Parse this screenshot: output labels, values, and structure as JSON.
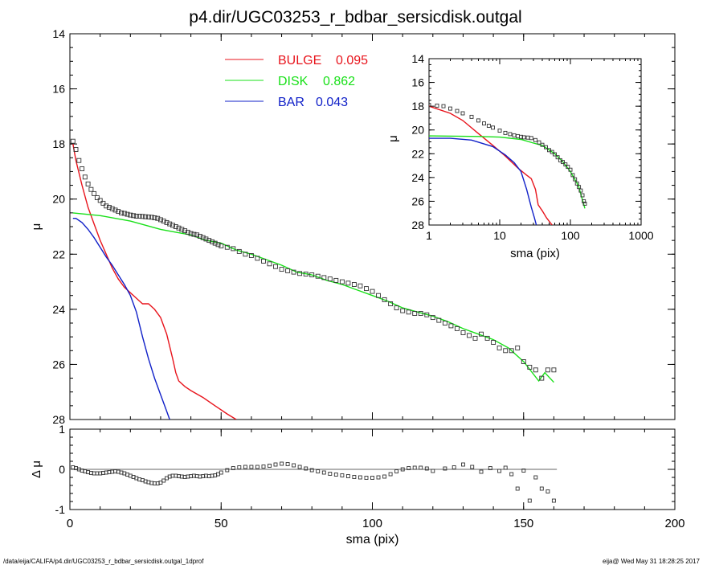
{
  "title": "p4.dir/UGC03253_r_bdbar_sersicdisk.outgal",
  "footer": {
    "left": "/data/eija/CALIFA/p4.dir/UGC03253_r_bdbar_sersicdisk.outgal_1dprof",
    "right": "eija@  Wed May 31 18:28:25 2017"
  },
  "colors": {
    "bulge": "#e8141c",
    "disk": "#18e018",
    "bar": "#1020c8",
    "data": "#000000"
  },
  "chart_data": [
    {
      "id": "main",
      "type": "line",
      "xlabel": "",
      "ylabel": "μ",
      "xlim": [
        0,
        200
      ],
      "ylim": [
        28,
        14
      ],
      "y_inverted": true,
      "y_ticks": [
        14,
        16,
        18,
        20,
        22,
        24,
        26,
        28
      ],
      "legend": [
        {
          "name": "BULGE",
          "value": "0.095",
          "color": "#e8141c"
        },
        {
          "name": "DISK",
          "value": "0.862",
          "color": "#18e018"
        },
        {
          "name": "BAR",
          "value": "0.043",
          "color": "#1020c8"
        }
      ],
      "legend_placement": "top-center",
      "series": [
        {
          "name": "BULGE",
          "kind": "line",
          "color": "#e8141c",
          "x": [
            1,
            2,
            4,
            6,
            8,
            10,
            12,
            14,
            16,
            18,
            20,
            22,
            24,
            26,
            28,
            30,
            32,
            34,
            35,
            36,
            38,
            40,
            44,
            48,
            52,
            55
          ],
          "y": [
            18.0,
            18.6,
            19.5,
            20.3,
            20.9,
            21.5,
            22.0,
            22.5,
            22.9,
            23.2,
            23.4,
            23.6,
            23.8,
            23.8,
            24.0,
            24.3,
            24.9,
            25.8,
            26.3,
            26.6,
            26.8,
            26.95,
            27.2,
            27.5,
            27.8,
            28.0
          ]
        },
        {
          "name": "DISK",
          "kind": "line",
          "color": "#18e018",
          "x": [
            1,
            10,
            20,
            30,
            35,
            40,
            45,
            50,
            55,
            60,
            65,
            70,
            75,
            80,
            85,
            90,
            95,
            100,
            105,
            110,
            115,
            120,
            125,
            130,
            135,
            140,
            145,
            150,
            155,
            157,
            160
          ],
          "y": [
            20.5,
            20.6,
            20.8,
            21.1,
            21.2,
            21.3,
            21.5,
            21.6,
            21.85,
            22.0,
            22.2,
            22.4,
            22.65,
            22.75,
            22.95,
            23.1,
            23.3,
            23.5,
            23.7,
            23.95,
            24.1,
            24.25,
            24.45,
            24.7,
            24.9,
            25.1,
            25.4,
            25.9,
            26.6,
            26.3,
            26.65
          ]
        },
        {
          "name": "BAR",
          "kind": "line",
          "color": "#1020c8",
          "x": [
            1,
            2,
            4,
            6,
            8,
            10,
            12,
            14,
            16,
            18,
            20,
            22,
            24,
            26,
            28,
            30,
            32,
            33
          ],
          "y": [
            20.7,
            20.7,
            20.85,
            21.1,
            21.4,
            21.75,
            22.1,
            22.4,
            22.75,
            23.1,
            23.5,
            24.1,
            25.0,
            25.8,
            26.5,
            27.1,
            27.7,
            28.0
          ]
        },
        {
          "name": "data",
          "kind": "points",
          "color": "#000000",
          "x": [
            1,
            2,
            3,
            4,
            5,
            6,
            7,
            8,
            9,
            10,
            11,
            12,
            13,
            14,
            15,
            16,
            17,
            18,
            19,
            20,
            21,
            22,
            23,
            24,
            25,
            26,
            27,
            28,
            29,
            30,
            31,
            32,
            33,
            34,
            35,
            36,
            37,
            38,
            39,
            40,
            41,
            42,
            43,
            44,
            45,
            46,
            47,
            48,
            49,
            50,
            52,
            54,
            56,
            58,
            60,
            62,
            64,
            66,
            68,
            70,
            72,
            74,
            76,
            78,
            80,
            82,
            84,
            86,
            88,
            90,
            92,
            94,
            96,
            98,
            100,
            102,
            104,
            106,
            108,
            110,
            112,
            114,
            116,
            118,
            120,
            122,
            124,
            126,
            128,
            130,
            132,
            134,
            136,
            138,
            140,
            142,
            144,
            146,
            148,
            150,
            152,
            154,
            156,
            158,
            160
          ],
          "y": [
            17.9,
            18.2,
            18.6,
            18.9,
            19.2,
            19.45,
            19.65,
            19.8,
            19.95,
            20.05,
            20.15,
            20.25,
            20.3,
            20.35,
            20.4,
            20.45,
            20.5,
            20.52,
            20.55,
            20.58,
            20.6,
            20.62,
            20.62,
            20.63,
            20.64,
            20.65,
            20.66,
            20.68,
            20.7,
            20.75,
            20.8,
            20.85,
            20.9,
            20.95,
            21.0,
            21.05,
            21.1,
            21.15,
            21.2,
            21.25,
            21.28,
            21.3,
            21.35,
            21.4,
            21.45,
            21.5,
            21.55,
            21.6,
            21.65,
            21.7,
            21.75,
            21.8,
            21.9,
            22.0,
            22.05,
            22.15,
            22.25,
            22.35,
            22.45,
            22.55,
            22.6,
            22.65,
            22.7,
            22.72,
            22.75,
            22.8,
            22.85,
            22.9,
            22.95,
            23.0,
            23.05,
            23.1,
            23.15,
            23.25,
            23.35,
            23.5,
            23.65,
            23.8,
            23.95,
            24.05,
            24.1,
            24.15,
            24.15,
            24.2,
            24.3,
            24.4,
            24.5,
            24.6,
            24.7,
            24.85,
            24.95,
            25.05,
            24.9,
            25.05,
            25.2,
            25.4,
            25.5,
            25.5,
            25.4,
            25.9,
            26.1,
            26.2,
            26.5,
            26.2,
            26.2
          ]
        }
      ]
    },
    {
      "id": "inset",
      "type": "line",
      "xlabel": "sma (pix)",
      "ylabel": "μ",
      "x_scale": "log",
      "xlim": [
        1,
        1000
      ],
      "ylim": [
        28,
        14
      ],
      "y_inverted": true,
      "x_ticks": [
        1,
        10,
        100,
        1000
      ],
      "x_tick_labels": [
        "1",
        "10",
        "100",
        "1000"
      ],
      "y_ticks": [
        14,
        16,
        18,
        20,
        22,
        24,
        26,
        28
      ],
      "series": [
        {
          "name": "BULGE",
          "kind": "line",
          "color": "#e8141c",
          "x": [
            1,
            2,
            3,
            5,
            8,
            12,
            18,
            24,
            28,
            32,
            35,
            40,
            46,
            55
          ],
          "y": [
            18.0,
            18.6,
            19.2,
            20.3,
            21.3,
            22.2,
            23.2,
            23.8,
            24.1,
            25.0,
            26.3,
            26.8,
            27.4,
            28.0
          ]
        },
        {
          "name": "DISK",
          "kind": "line",
          "color": "#18e018",
          "x": [
            1,
            5,
            10,
            20,
            30,
            40,
            60,
            80,
            100,
            130,
            160
          ],
          "y": [
            20.5,
            20.55,
            20.6,
            20.8,
            21.1,
            21.3,
            22.0,
            22.75,
            23.5,
            24.7,
            26.6
          ]
        },
        {
          "name": "BAR",
          "kind": "line",
          "color": "#1020c8",
          "x": [
            1,
            2,
            4,
            8,
            12,
            16,
            20,
            24,
            28,
            31,
            33
          ],
          "y": [
            20.7,
            20.7,
            20.85,
            21.4,
            22.1,
            22.75,
            23.5,
            25.0,
            26.5,
            27.4,
            28.0
          ]
        },
        {
          "name": "data",
          "kind": "points",
          "color": "#000000",
          "x": [
            1,
            1.3,
            1.6,
            2,
            2.5,
            3,
            4,
            5,
            6,
            7,
            8,
            10,
            12,
            14,
            16,
            18,
            20,
            22,
            25,
            28,
            32,
            36,
            40,
            45,
            50,
            55,
            60,
            66,
            72,
            78,
            85,
            92,
            100,
            108,
            116,
            124,
            132,
            140,
            148,
            155,
            160
          ],
          "y": [
            17.9,
            17.95,
            18.0,
            18.2,
            18.4,
            18.6,
            18.9,
            19.2,
            19.45,
            19.65,
            19.8,
            20.05,
            20.25,
            20.35,
            20.45,
            20.52,
            20.58,
            20.62,
            20.64,
            20.68,
            20.85,
            21.05,
            21.25,
            21.45,
            21.7,
            21.85,
            22.05,
            22.3,
            22.55,
            22.7,
            22.9,
            23.1,
            23.35,
            23.8,
            24.15,
            24.5,
            24.8,
            25.1,
            25.5,
            26.0,
            26.2
          ]
        }
      ]
    },
    {
      "id": "residual",
      "type": "scatter",
      "xlabel": "sma (pix)",
      "ylabel": "Δ μ",
      "xlim": [
        0,
        200
      ],
      "ylim": [
        -1,
        1
      ],
      "x_ticks": [
        0,
        50,
        100,
        150,
        200
      ],
      "y_ticks": [
        -1,
        0,
        1
      ],
      "zero_line": true,
      "series": [
        {
          "name": "residual",
          "kind": "points",
          "color": "#000000",
          "x": [
            1,
            2,
            3,
            4,
            5,
            6,
            7,
            8,
            9,
            10,
            11,
            12,
            13,
            14,
            15,
            16,
            17,
            18,
            19,
            20,
            21,
            22,
            23,
            24,
            25,
            26,
            27,
            28,
            29,
            30,
            31,
            32,
            33,
            34,
            35,
            36,
            37,
            38,
            39,
            40,
            41,
            42,
            43,
            44,
            45,
            46,
            47,
            48,
            49,
            50,
            52,
            54,
            56,
            58,
            60,
            62,
            64,
            66,
            68,
            70,
            72,
            74,
            76,
            78,
            80,
            82,
            84,
            86,
            88,
            90,
            92,
            94,
            96,
            98,
            100,
            102,
            104,
            106,
            108,
            110,
            112,
            114,
            116,
            118,
            120,
            124,
            127,
            130,
            133,
            136,
            139,
            142,
            144,
            146,
            148,
            150,
            152,
            154,
            156,
            158,
            160
          ],
          "y": [
            0.05,
            0.03,
            0.0,
            -0.03,
            -0.05,
            -0.07,
            -0.09,
            -0.1,
            -0.1,
            -0.1,
            -0.09,
            -0.08,
            -0.07,
            -0.06,
            -0.05,
            -0.06,
            -0.08,
            -0.1,
            -0.13,
            -0.16,
            -0.19,
            -0.22,
            -0.25,
            -0.27,
            -0.3,
            -0.32,
            -0.34,
            -0.35,
            -0.35,
            -0.33,
            -0.28,
            -0.22,
            -0.18,
            -0.16,
            -0.16,
            -0.17,
            -0.18,
            -0.19,
            -0.18,
            -0.17,
            -0.16,
            -0.17,
            -0.18,
            -0.17,
            -0.16,
            -0.17,
            -0.16,
            -0.15,
            -0.12,
            -0.08,
            -0.02,
            0.03,
            0.05,
            0.06,
            0.06,
            0.06,
            0.07,
            0.09,
            0.12,
            0.14,
            0.13,
            0.1,
            0.06,
            0.02,
            -0.02,
            -0.05,
            -0.08,
            -0.11,
            -0.13,
            -0.15,
            -0.17,
            -0.19,
            -0.2,
            -0.21,
            -0.21,
            -0.2,
            -0.18,
            -0.12,
            -0.05,
            0.0,
            0.03,
            0.04,
            0.04,
            0.02,
            -0.04,
            0.02,
            0.05,
            0.12,
            0.06,
            -0.06,
            0.03,
            -0.04,
            0.04,
            -0.12,
            -0.48,
            -0.03,
            -0.78,
            -0.2,
            -0.48,
            -0.55,
            -0.78
          ]
        }
      ]
    }
  ]
}
